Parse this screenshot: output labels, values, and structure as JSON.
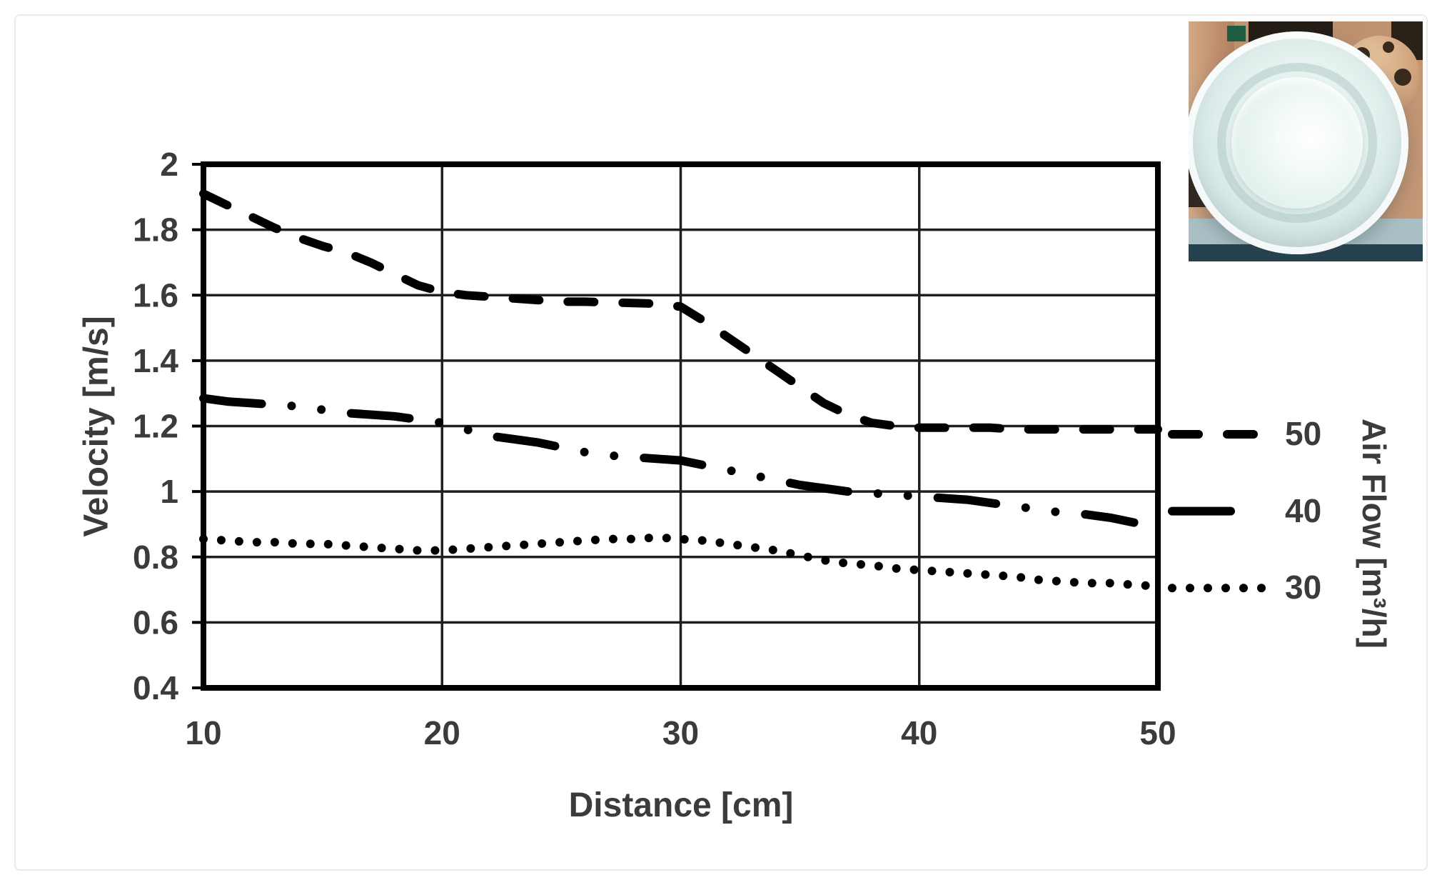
{
  "figure": {
    "background": "#ffffff",
    "border_color": "#ebebeb"
  },
  "chart_data": {
    "type": "line",
    "title": "",
    "xlabel": "Distance [cm]",
    "ylabel": "Velocity [m/s]",
    "legend_title": "Air Flow  [m³/h]",
    "xlim": [
      10,
      50
    ],
    "ylim": [
      0.4,
      2.0
    ],
    "x_ticks": [
      "10",
      "20",
      "30",
      "40",
      "50"
    ],
    "y_ticks": [
      "2",
      "1.8",
      "1.6",
      "1.4",
      "1.2",
      "1",
      "0.8",
      "0.6",
      "0.4"
    ],
    "grid": true,
    "line_color": "#000000",
    "label_color": "#3b3b3b",
    "legend_position": "right",
    "series": [
      {
        "name": "50",
        "style": "dashed",
        "legend_level": 1.175,
        "x": [
          10,
          11,
          12,
          13,
          14,
          15,
          16,
          17,
          18,
          19,
          20,
          21,
          22,
          23,
          24,
          25,
          26,
          27,
          28,
          29,
          30,
          31,
          32,
          33,
          34,
          35,
          36,
          37,
          38,
          39,
          40,
          41,
          42,
          43,
          44,
          45,
          46,
          47,
          48,
          49,
          50
        ],
        "values": [
          1.91,
          1.875,
          1.84,
          1.805,
          1.775,
          1.75,
          1.73,
          1.7,
          1.665,
          1.63,
          1.61,
          1.6,
          1.595,
          1.59,
          1.585,
          1.58,
          1.58,
          1.578,
          1.576,
          1.574,
          1.565,
          1.52,
          1.47,
          1.42,
          1.37,
          1.32,
          1.27,
          1.235,
          1.21,
          1.2,
          1.195,
          1.195,
          1.195,
          1.195,
          1.19,
          1.19,
          1.19,
          1.19,
          1.19,
          1.19,
          1.19
        ]
      },
      {
        "name": "40",
        "style": "dash-dot-dot",
        "legend_level": 0.94,
        "x": [
          10,
          11,
          12,
          13,
          14,
          15,
          16,
          17,
          18,
          19,
          20,
          21,
          22,
          23,
          24,
          25,
          26,
          27,
          28,
          29,
          30,
          31,
          32,
          33,
          34,
          35,
          36,
          37,
          38,
          39,
          40,
          41,
          42,
          43,
          44,
          45,
          46,
          47,
          48,
          49
        ],
        "values": [
          1.285,
          1.275,
          1.27,
          1.265,
          1.26,
          1.25,
          1.24,
          1.235,
          1.23,
          1.22,
          1.21,
          1.19,
          1.17,
          1.16,
          1.15,
          1.135,
          1.12,
          1.11,
          1.105,
          1.1,
          1.095,
          1.08,
          1.065,
          1.05,
          1.035,
          1.02,
          1.01,
          1.0,
          0.995,
          0.99,
          0.985,
          0.98,
          0.975,
          0.965,
          0.955,
          0.945,
          0.935,
          0.93,
          0.92,
          0.905
        ]
      },
      {
        "name": "30",
        "style": "dotted",
        "legend_level": 0.705,
        "x": [
          10,
          11,
          12,
          13,
          14,
          15,
          16,
          17,
          18,
          19,
          20,
          21,
          22,
          23,
          24,
          25,
          26,
          27,
          28,
          29,
          30,
          31,
          32,
          33,
          34,
          35,
          36,
          37,
          38,
          39,
          40,
          41,
          42,
          43,
          44,
          45,
          46,
          47,
          48,
          49,
          50
        ],
        "values": [
          0.855,
          0.85,
          0.845,
          0.845,
          0.84,
          0.84,
          0.835,
          0.83,
          0.825,
          0.82,
          0.82,
          0.825,
          0.83,
          0.835,
          0.84,
          0.845,
          0.85,
          0.855,
          0.855,
          0.86,
          0.855,
          0.85,
          0.84,
          0.83,
          0.82,
          0.805,
          0.79,
          0.78,
          0.775,
          0.765,
          0.76,
          0.755,
          0.75,
          0.745,
          0.74,
          0.73,
          0.725,
          0.72,
          0.72,
          0.715,
          0.71
        ]
      }
    ]
  },
  "photo": {
    "description": "circular-air-diffuser-valve-photo",
    "colors": {
      "wood": "#c59878",
      "valve": "#e4f1ee",
      "table_top": "#a9bfc4",
      "table_edge": "#24424e",
      "ball": "#cfa47e"
    }
  }
}
